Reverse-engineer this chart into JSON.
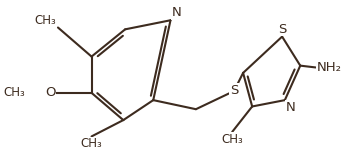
{
  "bg_color": "#ffffff",
  "bond_color": "#3d2b1f",
  "atom_color": "#3d2b1f",
  "line_width": 1.5,
  "font_size": 9.5,
  "figsize": [
    3.42,
    1.53
  ],
  "dpi": 100,
  "xlim": [
    0.0,
    3.42
  ],
  "ylim": [
    0.0,
    1.53
  ]
}
